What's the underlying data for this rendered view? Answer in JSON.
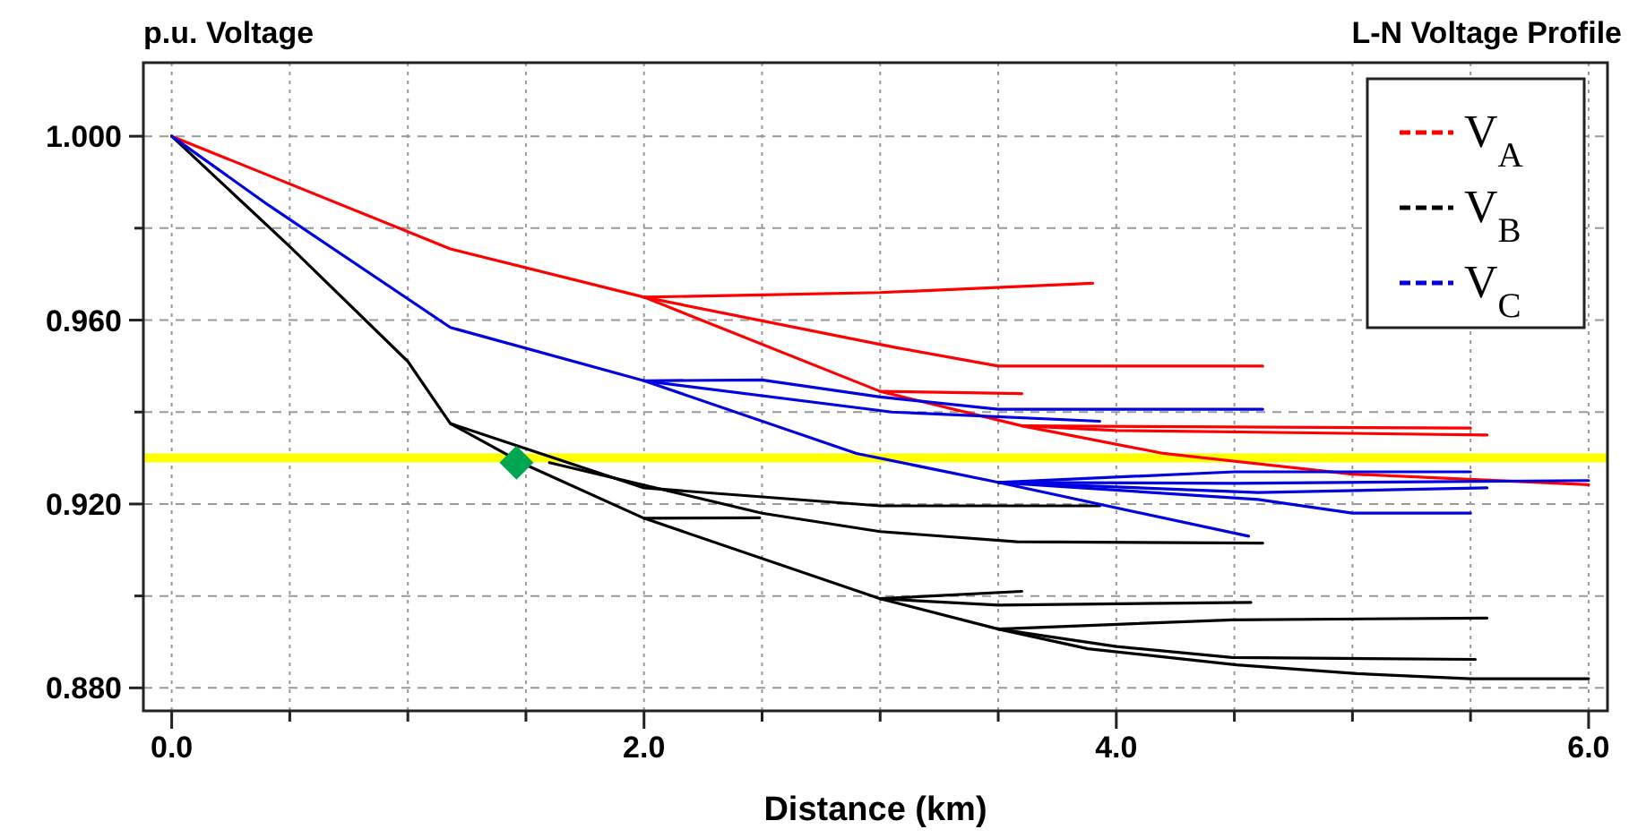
{
  "chart_data": {
    "type": "line",
    "title": "L-N Voltage Profile",
    "ylabel": "p.u. Voltage",
    "xlabel": "Distance (km)",
    "xlim": [
      -0.12,
      6.08
    ],
    "ylim": [
      0.875,
      1.016
    ],
    "xticks": [
      {
        "value": 0,
        "label": "0.0"
      },
      {
        "value": 0.5,
        "label": null
      },
      {
        "value": 1,
        "label": null
      },
      {
        "value": 1.5,
        "label": null
      },
      {
        "value": 2,
        "label": "2.0"
      },
      {
        "value": 2.5,
        "label": null
      },
      {
        "value": 3,
        "label": null
      },
      {
        "value": 3.5,
        "label": null
      },
      {
        "value": 4,
        "label": "4.0"
      },
      {
        "value": 4.5,
        "label": null
      },
      {
        "value": 5,
        "label": null
      },
      {
        "value": 5.5,
        "label": null
      },
      {
        "value": 6,
        "label": "6.0"
      }
    ],
    "yticks": [
      {
        "value": 0.88,
        "label": "0.880"
      },
      {
        "value": 0.9,
        "label": null
      },
      {
        "value": 0.92,
        "label": "0.920"
      },
      {
        "value": 0.94,
        "label": null
      },
      {
        "value": 0.96,
        "label": "0.960"
      },
      {
        "value": 0.98,
        "label": null
      },
      {
        "value": 1,
        "label": "1.000"
      }
    ],
    "grid": true,
    "legend": "top right",
    "ref_lines": [
      {
        "axis": "y",
        "value": 0.93,
        "color": "#ffff00"
      }
    ],
    "series": [
      {
        "name": "V$_{A}$",
        "color": "#ff0000",
        "x": [
          0,
          1.18,
          2.0,
          3.0,
          3.6,
          4.2,
          5.0,
          6.0
        ],
        "values": [
          1.0,
          0.9755,
          0.965,
          0.9445,
          0.937,
          0.931,
          0.9265,
          0.9242
        ]
      },
      {
        "color": "#ff0000",
        "x": [
          2.0,
          2.5,
          3.0,
          3.9
        ],
        "values": [
          0.965,
          0.9655,
          0.966,
          0.968
        ]
      },
      {
        "color": "#ff0000",
        "x": [
          2.0,
          3.07,
          3.5,
          4.62
        ],
        "values": [
          0.965,
          0.954,
          0.95,
          0.95
        ]
      },
      {
        "color": "#ff0000",
        "x": [
          3.0,
          3.6
        ],
        "values": [
          0.9445,
          0.944
        ]
      },
      {
        "color": "#ff0000",
        "x": [
          3.6,
          4.0,
          5.57
        ],
        "values": [
          0.937,
          0.936,
          0.935
        ]
      },
      {
        "color": "#ff0000",
        "x": [
          3.6,
          5.5
        ],
        "values": [
          0.937,
          0.9365
        ]
      },
      {
        "name": "V$_{B}$",
        "color": "#000000",
        "x": [
          0,
          0.5,
          1.0,
          1.18,
          1.5,
          2.0,
          3.0,
          3.5,
          3.88,
          4.51,
          5.02,
          5.5,
          6.0
        ],
        "values": [
          1.0,
          0.976,
          0.951,
          0.9375,
          0.9285,
          0.9169,
          0.8994,
          0.8928,
          0.8885,
          0.885,
          0.8831,
          0.882,
          0.882
        ]
      },
      {
        "color": "#000000",
        "x": [
          1.18,
          2.0,
          3.0,
          3.93
        ],
        "values": [
          0.9375,
          0.9235,
          0.9196,
          0.9196
        ]
      },
      {
        "color": "#000000",
        "x": [
          1.6,
          2.5,
          3.0,
          3.58,
          4.62
        ],
        "values": [
          0.929,
          0.918,
          0.914,
          0.9118,
          0.9115
        ]
      },
      {
        "color": "#000000",
        "x": [
          2.0,
          2.49
        ],
        "values": [
          0.9169,
          0.917
        ]
      },
      {
        "color": "#000000",
        "x": [
          3.0,
          3.6
        ],
        "values": [
          0.8994,
          0.901
        ]
      },
      {
        "color": "#000000",
        "x": [
          3.0,
          3.5,
          4.57
        ],
        "values": [
          0.8994,
          0.898,
          0.8986
        ]
      },
      {
        "color": "#000000",
        "x": [
          3.5,
          4.49,
          5.57
        ],
        "values": [
          0.8928,
          0.8948,
          0.8952
        ]
      },
      {
        "color": "#000000",
        "x": [
          3.5,
          4.0,
          4.49,
          5.52
        ],
        "values": [
          0.8928,
          0.889,
          0.8866,
          0.8862
        ]
      },
      {
        "name": "V$_{C}$",
        "color": "#0000e0",
        "x": [
          0,
          0.41,
          1.18,
          2.0,
          2.9,
          3.5,
          4.56
        ],
        "values": [
          1.0,
          0.985,
          0.9584,
          0.9468,
          0.931,
          0.9247,
          0.913
        ]
      },
      {
        "color": "#0000e0",
        "x": [
          2.0,
          2.5,
          3.0,
          3.5,
          4.62
        ],
        "values": [
          0.9468,
          0.947,
          0.9433,
          0.9406,
          0.9406
        ]
      },
      {
        "color": "#0000e0",
        "x": [
          2.0,
          3.05,
          3.93
        ],
        "values": [
          0.9468,
          0.94,
          0.938
        ]
      },
      {
        "color": "#0000e0",
        "x": [
          3.5,
          4.5,
          5.5
        ],
        "values": [
          0.9247,
          0.927,
          0.927
        ]
      },
      {
        "color": "#0000e0",
        "x": [
          3.5,
          4.5,
          6.0
        ],
        "values": [
          0.9247,
          0.9245,
          0.9251
        ]
      },
      {
        "color": "#0000e0",
        "x": [
          3.5,
          4.6,
          5.57
        ],
        "values": [
          0.9247,
          0.9225,
          0.9235
        ]
      },
      {
        "color": "#0000e0",
        "x": [
          3.5,
          4.6,
          5.0,
          5.5
        ],
        "values": [
          0.9247,
          0.921,
          0.918,
          0.918
        ]
      },
      {
        "type": "scatter",
        "marker": "diamond",
        "color": "#00a651",
        "x": [
          1.46
        ],
        "values": [
          0.929
        ]
      }
    ]
  }
}
